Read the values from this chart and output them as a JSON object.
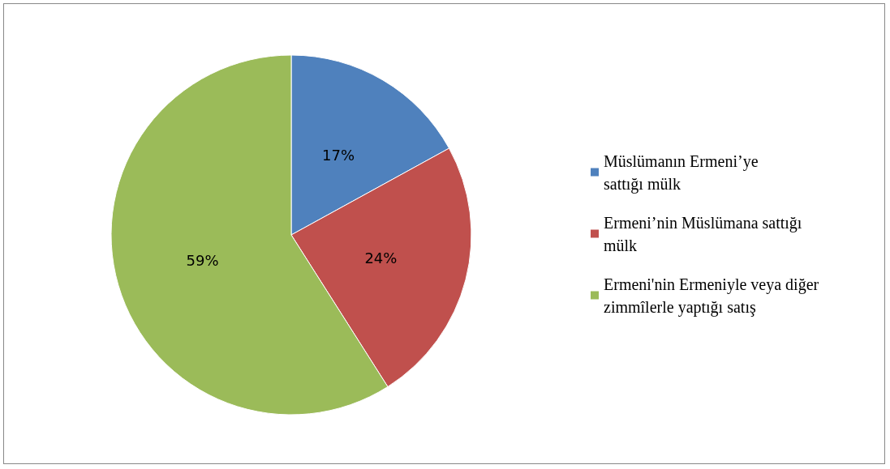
{
  "chart_data": {
    "type": "pie",
    "categories": [
      "Müslümanın Ermeni’ye sattığı mülk",
      "Ermeni’nin Müslümana sattığı mülk",
      "Ermeni'nin Ermeniyle veya diğer zimmîlerle yaptığı satış"
    ],
    "values": [
      17,
      24,
      59
    ],
    "value_labels": [
      "17%",
      "24%",
      "59%"
    ],
    "colors": [
      "#4f81bd",
      "#c0504d",
      "#9bbb59"
    ],
    "legend": "right"
  }
}
